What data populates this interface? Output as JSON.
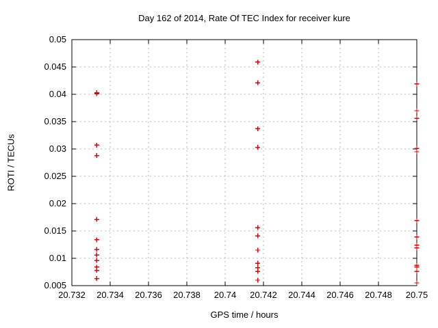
{
  "window": {
    "title": "Day 162 of 2014, Rate Of TEC Index for receiver kure"
  },
  "chart_data": {
    "type": "scatter",
    "title": "Day 162 of 2014, Rate Of TEC Index for receiver kure",
    "xlabel": "GPS time / hours",
    "ylabel": "ROTI / TECUs",
    "xlim": [
      20.732,
      20.75
    ],
    "ylim": [
      0.005,
      0.05
    ],
    "xtick_values": [
      20.732,
      20.734,
      20.736,
      20.738,
      20.74,
      20.742,
      20.744,
      20.746,
      20.748,
      20.75
    ],
    "xtick_labels": [
      "20.732",
      "20.734",
      "20.736",
      "20.738",
      "20.74",
      "20.742",
      "20.744",
      "20.746",
      "20.748",
      "20.75"
    ],
    "ytick_values": [
      0.005,
      0.01,
      0.015,
      0.02,
      0.025,
      0.03,
      0.035,
      0.04,
      0.045,
      0.05
    ],
    "ytick_labels": [
      "0.005",
      "0.01",
      "0.015",
      "0.02",
      "0.025",
      "0.03",
      "0.035",
      "0.04",
      "0.045",
      "0.05"
    ],
    "grid": true,
    "legend": "none",
    "marker": "plus",
    "marker_color": "#e60000",
    "grid_color": "#b4b4b4",
    "border_color": "#000000",
    "series": [
      {
        "name": "ROTI",
        "points": [
          [
            20.7333,
            0.0401
          ],
          [
            20.7333,
            0.0403
          ],
          [
            20.7333,
            0.0307
          ],
          [
            20.7333,
            0.0288
          ],
          [
            20.7333,
            0.0171
          ],
          [
            20.7333,
            0.0134
          ],
          [
            20.7333,
            0.0116
          ],
          [
            20.7333,
            0.0106
          ],
          [
            20.7333,
            0.0096
          ],
          [
            20.7333,
            0.0084
          ],
          [
            20.7333,
            0.0078
          ],
          [
            20.7333,
            0.0063
          ],
          [
            20.7417,
            0.0459
          ],
          [
            20.7417,
            0.0421
          ],
          [
            20.7417,
            0.0337
          ],
          [
            20.7417,
            0.0303
          ],
          [
            20.7417,
            0.0156
          ],
          [
            20.7417,
            0.0141
          ],
          [
            20.7417,
            0.0115
          ],
          [
            20.7417,
            0.0091
          ],
          [
            20.7417,
            0.0083
          ],
          [
            20.7417,
            0.0076
          ],
          [
            20.7417,
            0.006
          ],
          [
            20.75,
            0.0419
          ],
          [
            20.75,
            0.037
          ],
          [
            20.75,
            0.0356
          ],
          [
            20.75,
            0.0301
          ],
          [
            20.75,
            0.0295
          ],
          [
            20.75,
            0.0169
          ],
          [
            20.75,
            0.0139
          ],
          [
            20.75,
            0.0124
          ],
          [
            20.75,
            0.0119
          ],
          [
            20.75,
            0.0087
          ],
          [
            20.75,
            0.0084
          ],
          [
            20.75,
            0.0076
          ],
          [
            20.75,
            0.0055
          ]
        ]
      }
    ]
  }
}
